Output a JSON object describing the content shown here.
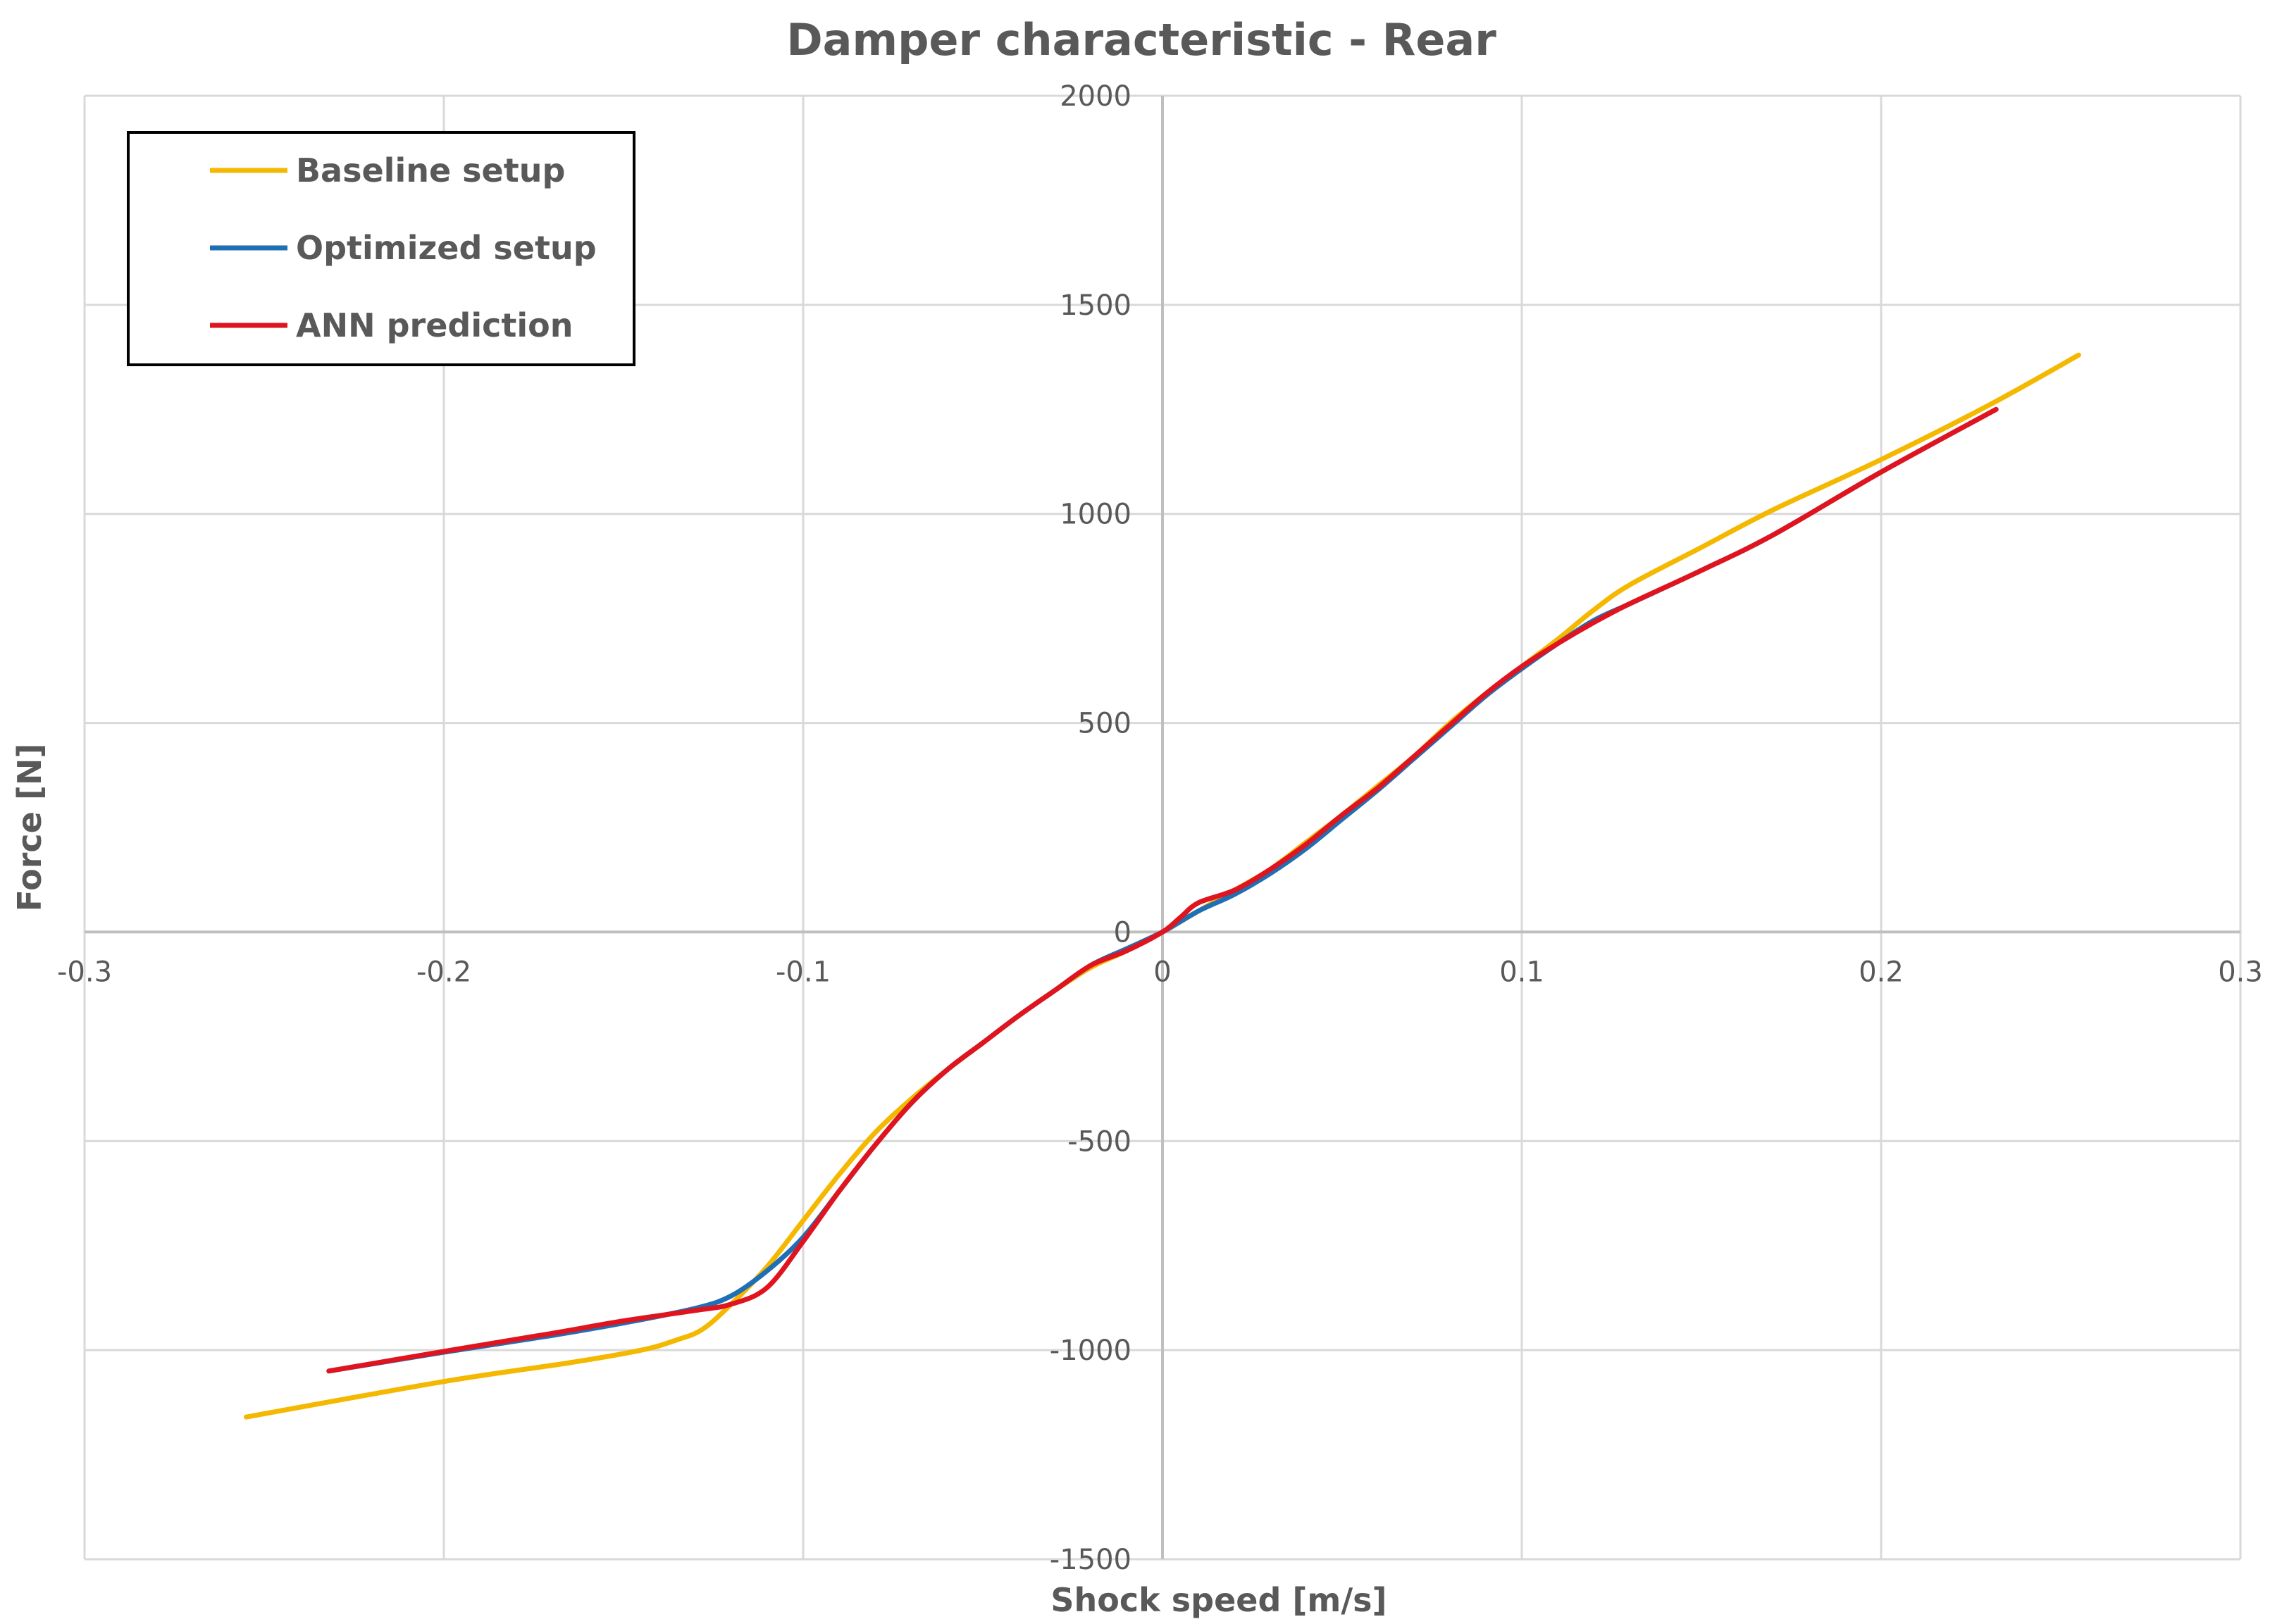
{
  "chart_data": {
    "type": "line",
    "title": "Damper characteristic - Rear",
    "xlabel": "Shock speed [m/s]",
    "ylabel": "Force [N]",
    "xlim": [
      -0.3,
      0.3
    ],
    "ylim": [
      -1500,
      2000
    ],
    "x_ticks": [
      -0.3,
      -0.2,
      -0.1,
      0,
      0.1,
      0.2,
      0.3
    ],
    "x_tick_labels": [
      "-0.3",
      "-0.2",
      "-0.1",
      "0",
      "0.1",
      "0.2",
      "0.3"
    ],
    "y_ticks": [
      -1500,
      -1000,
      -500,
      0,
      500,
      1000,
      1500,
      2000
    ],
    "y_tick_labels": [
      "-1500",
      "-1000",
      "-500",
      "0",
      "500",
      "1000",
      "1500",
      "2000"
    ],
    "grid": true,
    "legend_position": "top-left",
    "series": [
      {
        "name": "Baseline setup",
        "color": "#F5B800",
        "x": [
          -0.255,
          -0.2,
          -0.165,
          -0.145,
          -0.135,
          -0.128,
          -0.12,
          -0.11,
          -0.1,
          -0.09,
          -0.08,
          -0.07,
          -0.06,
          -0.05,
          -0.04,
          -0.03,
          -0.02,
          -0.01,
          0,
          0.01,
          0.02,
          0.03,
          0.04,
          0.05,
          0.06,
          0.07,
          0.08,
          0.09,
          0.1,
          0.11,
          0.12,
          0.13,
          0.15,
          0.17,
          0.2,
          0.23,
          0.255
        ],
        "y": [
          -1160,
          -1075,
          -1030,
          -1000,
          -975,
          -950,
          -890,
          -800,
          -690,
          -580,
          -480,
          -400,
          -330,
          -265,
          -200,
          -140,
          -85,
          -45,
          0,
          50,
          100,
          150,
          215,
          280,
          350,
          420,
          500,
          570,
          635,
          700,
          770,
          830,
          920,
          1010,
          1130,
          1260,
          1380
        ]
      },
      {
        "name": "Optimized setup",
        "color": "#1F6FB4",
        "x": [
          -0.232,
          -0.2,
          -0.17,
          -0.15,
          -0.13,
          -0.12,
          -0.11,
          -0.1,
          -0.09,
          -0.08,
          -0.07,
          -0.06,
          -0.05,
          -0.04,
          -0.03,
          -0.02,
          -0.01,
          0,
          0.01,
          0.02,
          0.03,
          0.04,
          0.05,
          0.06,
          0.07,
          0.08,
          0.09,
          0.1,
          0.11,
          0.12,
          0.13,
          0.15,
          0.17,
          0.2,
          0.232
        ],
        "y": [
          -1050,
          -1005,
          -965,
          -935,
          -900,
          -870,
          -810,
          -730,
          -620,
          -510,
          -410,
          -330,
          -265,
          -200,
          -140,
          -80,
          -40,
          0,
          50,
          90,
          140,
          200,
          270,
          340,
          415,
          490,
          565,
          630,
          690,
          745,
          785,
          865,
          950,
          1100,
          1250
        ]
      },
      {
        "name": "ANN prediction",
        "color": "#E0141E",
        "x": [
          -0.232,
          -0.2,
          -0.17,
          -0.15,
          -0.13,
          -0.12,
          -0.11,
          -0.1,
          -0.09,
          -0.08,
          -0.07,
          -0.06,
          -0.05,
          -0.04,
          -0.03,
          -0.02,
          -0.01,
          0,
          0.005,
          0.01,
          0.02,
          0.03,
          0.04,
          0.05,
          0.06,
          0.07,
          0.08,
          0.09,
          0.1,
          0.11,
          0.12,
          0.13,
          0.15,
          0.17,
          0.2,
          0.232
        ],
        "y": [
          -1050,
          -1003,
          -960,
          -930,
          -905,
          -890,
          -850,
          -740,
          -620,
          -510,
          -410,
          -330,
          -265,
          -200,
          -140,
          -80,
          -45,
          0,
          35,
          70,
          100,
          150,
          210,
          280,
          345,
          420,
          495,
          570,
          635,
          690,
          740,
          785,
          865,
          950,
          1100,
          1250
        ]
      }
    ]
  }
}
